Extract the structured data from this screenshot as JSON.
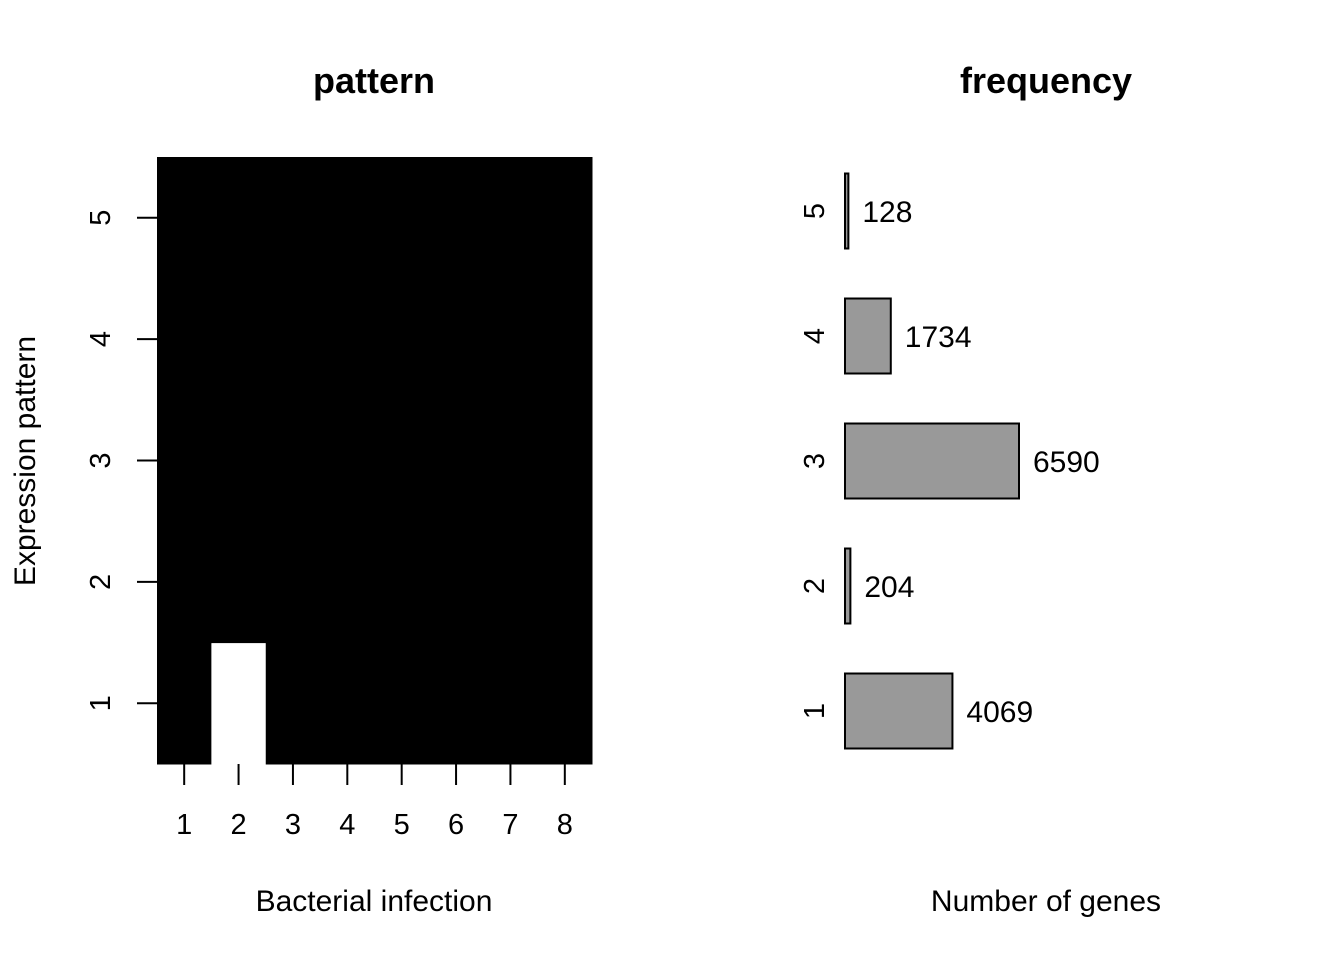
{
  "chart_data": [
    {
      "type": "heatmap",
      "title": "pattern",
      "xlabel": "Bacterial infection",
      "ylabel": "Expression pattern",
      "x_categories": [
        "1",
        "2",
        "3",
        "4",
        "5",
        "6",
        "7",
        "8"
      ],
      "y_categories": [
        "1",
        "2",
        "3",
        "4",
        "5"
      ],
      "values": [
        [
          0,
          1,
          0,
          0,
          0,
          0,
          0,
          0
        ],
        [
          0,
          0,
          0,
          0,
          0,
          0,
          0,
          0
        ],
        [
          0,
          0,
          0,
          0,
          0,
          0,
          0,
          0
        ],
        [
          0,
          0,
          0,
          0,
          0,
          0,
          0,
          0
        ],
        [
          0,
          0,
          0,
          0,
          0,
          0,
          0,
          0
        ]
      ],
      "colors": {
        "0": "#000000",
        "1": "#ffffff"
      }
    },
    {
      "type": "bar",
      "orientation": "horizontal",
      "title": "frequency",
      "xlabel": "Number of genes",
      "ylabel": "",
      "categories": [
        "1",
        "2",
        "3",
        "4",
        "5"
      ],
      "values": [
        4069,
        204,
        6590,
        1734,
        128
      ],
      "bar_color": "#999999"
    }
  ]
}
